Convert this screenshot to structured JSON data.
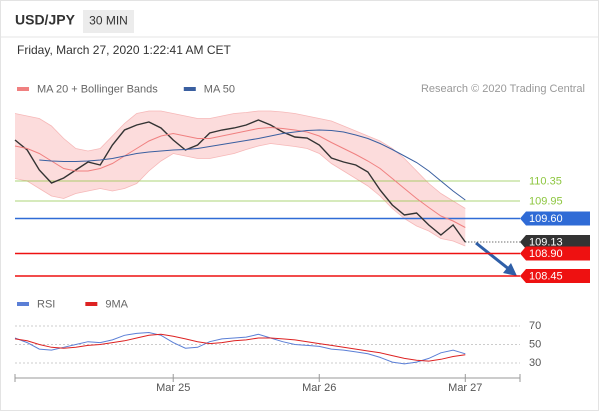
{
  "chart_data": [
    {
      "type": "line",
      "title": "USD/JPY",
      "interval": "30 MIN",
      "subtitle": "Friday, March 27, 2020 1:22:41 AM CET",
      "credit": "Research © 2020 Trading Central",
      "ylim": [
        108.2,
        112.0
      ],
      "yticks": [
        110.35,
        109.95,
        {
          "value": 109.6,
          "label": "109.60"
        },
        109.13,
        {
          "value": 108.9,
          "label": "108.90"
        },
        108.45
      ],
      "ytick_styles": [
        {
          "color": "#8dc63f",
          "boxed": false,
          "dotted": false
        },
        {
          "color": "#8dc63f",
          "boxed": false,
          "dotted": false
        },
        {
          "color": "#2f6bd6",
          "boxed": true,
          "dotted": false
        },
        {
          "color": "#333333",
          "boxed": true,
          "dotted": true
        },
        {
          "color": "#ee1111",
          "boxed": true,
          "dotted": false
        },
        {
          "color": "#ee1111",
          "boxed": true,
          "dotted": false
        }
      ],
      "series": [
        {
          "color": "#333333",
          "values": [
            111.17,
            110.97,
            110.57,
            110.31,
            110.41,
            110.57,
            110.73,
            110.67,
            111.07,
            111.37,
            111.47,
            111.53,
            111.41,
            111.17,
            110.97,
            111.07,
            111.31,
            111.37,
            111.41,
            111.47,
            111.57,
            111.47,
            111.33,
            111.23,
            111.21,
            111.07,
            110.81,
            110.73,
            110.67,
            110.53,
            110.17,
            109.87,
            109.67,
            109.71,
            109.47,
            109.27,
            109.47,
            109.13
          ]
        },
        {
          "name": "MA 20 + Bollinger Bands",
          "color": "#f08080",
          "band_color": "#fcdcdc",
          "values": [
            111.05,
            111.0,
            110.9,
            110.75,
            110.6,
            110.55,
            110.55,
            110.6,
            110.7,
            110.85,
            111.0,
            111.15,
            111.25,
            111.3,
            111.25,
            111.2,
            111.2,
            111.25,
            111.3,
            111.35,
            111.4,
            111.42,
            111.4,
            111.37,
            111.33,
            111.25,
            111.12,
            111.0,
            110.88,
            110.75,
            110.6,
            110.4,
            110.2,
            110.0,
            109.82,
            109.65,
            109.55,
            109.42
          ],
          "upper": [
            111.7,
            111.65,
            111.6,
            111.45,
            111.2,
            111.0,
            110.95,
            111.0,
            111.25,
            111.5,
            111.7,
            111.75,
            111.75,
            111.7,
            111.65,
            111.6,
            111.6,
            111.65,
            111.7,
            111.72,
            111.75,
            111.75,
            111.73,
            111.7,
            111.65,
            111.6,
            111.55,
            111.45,
            111.35,
            111.25,
            111.15,
            111.0,
            110.8,
            110.55,
            110.3,
            110.1,
            109.95,
            109.8
          ],
          "lower": [
            110.4,
            110.35,
            110.2,
            110.05,
            110.0,
            110.1,
            110.15,
            110.2,
            110.15,
            110.2,
            110.3,
            110.55,
            110.75,
            110.9,
            110.85,
            110.8,
            110.8,
            110.85,
            110.9,
            110.98,
            111.05,
            111.1,
            111.07,
            111.04,
            111.0,
            110.9,
            110.7,
            110.55,
            110.4,
            110.25,
            110.05,
            109.8,
            109.6,
            109.45,
            109.35,
            109.2,
            109.15,
            109.05
          ]
        },
        {
          "name": "MA 50",
          "color": "#3a5fa0",
          "values": [
            null,
            null,
            110.77,
            110.75,
            110.74,
            110.74,
            110.75,
            110.77,
            110.8,
            110.85,
            110.9,
            110.93,
            110.95,
            110.97,
            110.98,
            111.0,
            111.04,
            111.08,
            111.12,
            111.16,
            111.2,
            111.25,
            111.3,
            111.33,
            111.36,
            111.37,
            111.36,
            111.33,
            111.27,
            111.2,
            111.1,
            110.98,
            110.85,
            110.72,
            110.55,
            110.35,
            110.15,
            109.97
          ]
        }
      ]
    },
    {
      "type": "line",
      "categories": [
        null,
        null,
        null,
        null,
        null,
        null,
        null,
        null,
        null,
        null,
        null,
        null,
        null,
        "Mar 25",
        null,
        null,
        null,
        null,
        null,
        null,
        null,
        null,
        null,
        null,
        null,
        "Mar 26",
        null,
        null,
        null,
        null,
        null,
        null,
        null,
        null,
        null,
        null,
        null,
        "Mar 27"
      ],
      "ylim": [
        20,
        80
      ],
      "yticks": [
        70,
        50,
        30
      ],
      "grid": true,
      "series": [
        {
          "name": "RSI",
          "color": "#5b7fd6",
          "values": [
            57,
            52,
            45,
            44,
            47,
            50,
            53,
            52,
            55,
            60,
            62,
            63,
            60,
            52,
            46,
            47,
            53,
            56,
            57,
            58,
            61,
            57,
            53,
            50,
            49,
            48,
            45,
            44,
            42,
            40,
            36,
            31,
            29,
            31,
            35,
            41,
            44,
            40
          ]
        },
        {
          "name": "9MA",
          "color": "#dd2222",
          "values": [
            56,
            54,
            50,
            47,
            46,
            47,
            49,
            50,
            52,
            54,
            57,
            60,
            61,
            59,
            56,
            53,
            51,
            52,
            54,
            55,
            57,
            57,
            56,
            55,
            53,
            51,
            49,
            47,
            45,
            43,
            41,
            38,
            35,
            33,
            32,
            34,
            37,
            39
          ]
        }
      ]
    }
  ]
}
